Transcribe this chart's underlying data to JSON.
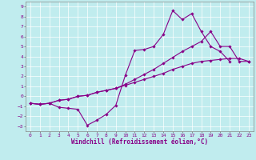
{
  "xlabel": "Windchill (Refroidissement éolien,°C)",
  "xlim": [
    -0.5,
    23.5
  ],
  "ylim": [
    -3.5,
    9.5
  ],
  "xticks": [
    0,
    1,
    2,
    3,
    4,
    5,
    6,
    7,
    8,
    9,
    10,
    11,
    12,
    13,
    14,
    15,
    16,
    17,
    18,
    19,
    20,
    21,
    22,
    23
  ],
  "yticks": [
    -3,
    -2,
    -1,
    0,
    1,
    2,
    3,
    4,
    5,
    6,
    7,
    8,
    9
  ],
  "bg_color": "#c0ecee",
  "line_color": "#880088",
  "line1_x": [
    0,
    1,
    2,
    3,
    4,
    5,
    6,
    7,
    8,
    9,
    10,
    11,
    12,
    13,
    14,
    15,
    16,
    17,
    18,
    19,
    20,
    21
  ],
  "line1_y": [
    -0.7,
    -0.8,
    -0.7,
    -1.1,
    -1.2,
    -1.3,
    -2.9,
    -2.4,
    -1.8,
    -0.9,
    2.1,
    4.6,
    4.7,
    5.0,
    6.2,
    8.6,
    7.7,
    8.3,
    6.5,
    5.0,
    4.5,
    3.5
  ],
  "line2_x": [
    0,
    1,
    2,
    3,
    4,
    5,
    6,
    7,
    8,
    9,
    10,
    11,
    12,
    13,
    14,
    15,
    16,
    17,
    18,
    19,
    20,
    21,
    22,
    23
  ],
  "line2_y": [
    -0.7,
    -0.8,
    -0.7,
    -0.4,
    -0.3,
    0.0,
    0.1,
    0.4,
    0.6,
    0.8,
    1.1,
    1.4,
    1.7,
    2.0,
    2.3,
    2.7,
    3.0,
    3.3,
    3.5,
    3.6,
    3.7,
    3.8,
    3.8,
    3.5
  ],
  "line3_x": [
    0,
    1,
    2,
    3,
    4,
    5,
    6,
    7,
    8,
    9,
    10,
    11,
    12,
    13,
    14,
    15,
    16,
    17,
    18,
    19,
    20,
    21,
    22,
    23
  ],
  "line3_y": [
    -0.7,
    -0.8,
    -0.7,
    -0.4,
    -0.3,
    0.0,
    0.1,
    0.4,
    0.6,
    0.8,
    1.2,
    1.7,
    2.2,
    2.7,
    3.3,
    3.9,
    4.5,
    5.0,
    5.5,
    6.5,
    5.0,
    5.0,
    3.5,
    3.5
  ],
  "font_family": "monospace",
  "tick_fontsize": 4.5,
  "label_fontsize": 5.5
}
